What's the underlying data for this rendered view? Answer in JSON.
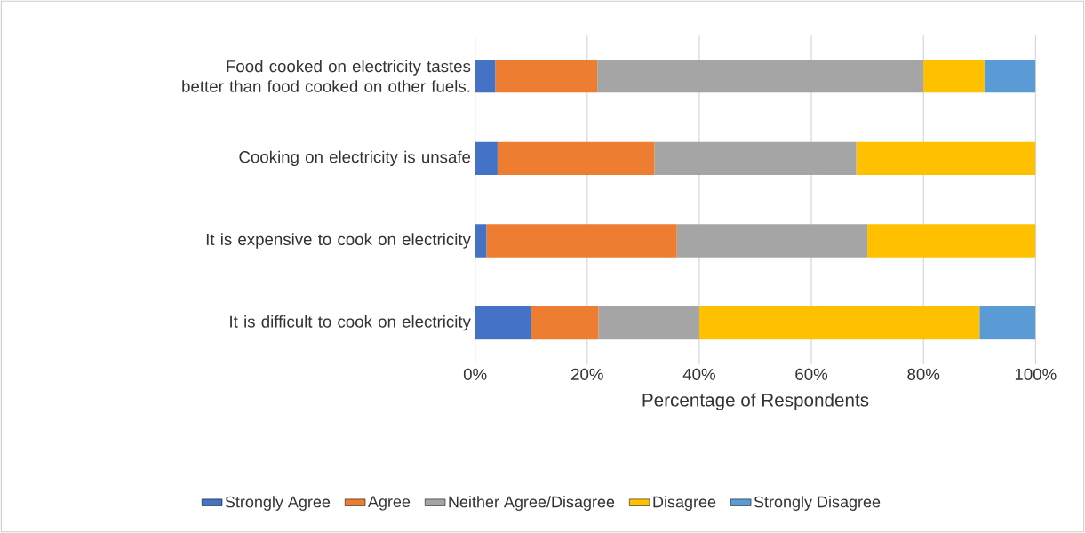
{
  "chart_data": {
    "type": "bar",
    "orientation": "horizontal",
    "stacked": true,
    "categories": [
      "Food cooked on electricity tastes better than food cooked on other fuels.",
      "Cooking on electricity is unsafe",
      "It is expensive to cook on electricity",
      "It is difficult to cook on electricity"
    ],
    "series": [
      {
        "name": "Strongly Agree",
        "color": "#4472c4",
        "values": [
          3.6,
          4,
          2,
          10
        ]
      },
      {
        "name": "Agree",
        "color": "#ed7d31",
        "values": [
          18.2,
          28,
          34,
          12
        ]
      },
      {
        "name": "Neither Agree/Disagree",
        "color": "#a5a5a5",
        "values": [
          58.2,
          36,
          34,
          18
        ]
      },
      {
        "name": "Disagree",
        "color": "#ffc000",
        "values": [
          10.9,
          32,
          30,
          50
        ]
      },
      {
        "name": "Strongly Disagree",
        "color": "#5b9bd5",
        "values": [
          9.1,
          0,
          0,
          10
        ]
      }
    ],
    "xlabel": "Percentage of Respondents",
    "xlim": [
      0,
      100
    ],
    "xticks": [
      {
        "value": 0,
        "label": "0%"
      },
      {
        "value": 20,
        "label": "20%"
      },
      {
        "value": 40,
        "label": "40%"
      },
      {
        "value": 60,
        "label": "60%"
      },
      {
        "value": 80,
        "label": "80%"
      },
      {
        "value": 100,
        "label": "100%"
      }
    ],
    "grid": "x",
    "legend": "bottom"
  }
}
